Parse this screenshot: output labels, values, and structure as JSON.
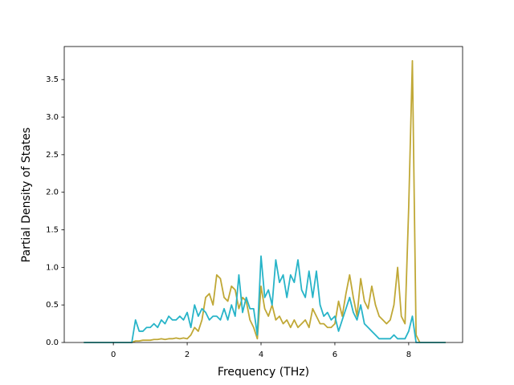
{
  "chart_data": {
    "type": "line",
    "xlabel": "Frequency (THz)",
    "ylabel": "Partial Density of States",
    "x": [
      -0.8,
      -0.7,
      -0.6,
      -0.5,
      -0.4,
      -0.3,
      -0.2,
      -0.1,
      0.0,
      0.1,
      0.2,
      0.3,
      0.4,
      0.5,
      0.6,
      0.7,
      0.8,
      0.9,
      1.0,
      1.1,
      1.2,
      1.3,
      1.4,
      1.5,
      1.6,
      1.7,
      1.8,
      1.9,
      2.0,
      2.1,
      2.2,
      2.3,
      2.4,
      2.5,
      2.6,
      2.7,
      2.8,
      2.9,
      3.0,
      3.1,
      3.2,
      3.3,
      3.4,
      3.5,
      3.6,
      3.7,
      3.8,
      3.9,
      4.0,
      4.1,
      4.2,
      4.3,
      4.4,
      4.5,
      4.6,
      4.7,
      4.8,
      4.9,
      5.0,
      5.1,
      5.2,
      5.3,
      5.4,
      5.5,
      5.6,
      5.7,
      5.8,
      5.9,
      6.0,
      6.1,
      6.2,
      6.3,
      6.4,
      6.5,
      6.6,
      6.7,
      6.8,
      6.9,
      7.0,
      7.1,
      7.2,
      7.3,
      7.4,
      7.5,
      7.6,
      7.7,
      7.8,
      7.9,
      8.0,
      8.1,
      8.2,
      8.3,
      8.4,
      8.5,
      8.6,
      8.7,
      8.8,
      8.9,
      9.0
    ],
    "series": [
      {
        "color": "#c0a836",
        "values": [
          0,
          0,
          0,
          0,
          0,
          0,
          0,
          0,
          0,
          0,
          0,
          0,
          0,
          0,
          0.02,
          0.02,
          0.03,
          0.03,
          0.03,
          0.04,
          0.04,
          0.05,
          0.04,
          0.05,
          0.05,
          0.06,
          0.05,
          0.06,
          0.05,
          0.1,
          0.2,
          0.15,
          0.3,
          0.6,
          0.65,
          0.5,
          0.9,
          0.85,
          0.6,
          0.55,
          0.75,
          0.7,
          0.45,
          0.6,
          0.55,
          0.3,
          0.2,
          0.05,
          0.75,
          0.45,
          0.35,
          0.5,
          0.3,
          0.35,
          0.25,
          0.3,
          0.2,
          0.3,
          0.2,
          0.25,
          0.3,
          0.2,
          0.45,
          0.35,
          0.25,
          0.25,
          0.2,
          0.2,
          0.25,
          0.55,
          0.35,
          0.65,
          0.9,
          0.6,
          0.35,
          0.85,
          0.55,
          0.45,
          0.75,
          0.5,
          0.35,
          0.3,
          0.25,
          0.3,
          0.5,
          1.0,
          0.35,
          0.25,
          1.8,
          3.75,
          0.1,
          0,
          0,
          0,
          0,
          0,
          0,
          0,
          0
        ]
      },
      {
        "color": "#27b4c8",
        "values": [
          0,
          0,
          0,
          0,
          0,
          0,
          0,
          0,
          0,
          0,
          0,
          0,
          0,
          0,
          0.3,
          0.15,
          0.15,
          0.2,
          0.2,
          0.25,
          0.2,
          0.3,
          0.25,
          0.35,
          0.3,
          0.3,
          0.35,
          0.3,
          0.4,
          0.2,
          0.5,
          0.35,
          0.45,
          0.4,
          0.3,
          0.35,
          0.35,
          0.3,
          0.45,
          0.3,
          0.5,
          0.35,
          0.9,
          0.4,
          0.6,
          0.45,
          0.45,
          0.1,
          1.15,
          0.6,
          0.7,
          0.5,
          1.1,
          0.8,
          0.9,
          0.6,
          0.9,
          0.8,
          1.1,
          0.7,
          0.6,
          0.95,
          0.6,
          0.95,
          0.5,
          0.35,
          0.4,
          0.3,
          0.35,
          0.15,
          0.3,
          0.45,
          0.6,
          0.4,
          0.3,
          0.5,
          0.25,
          0.2,
          0.15,
          0.1,
          0.05,
          0.05,
          0.05,
          0.05,
          0.1,
          0.05,
          0.05,
          0.05,
          0.15,
          0.35,
          0,
          0,
          0,
          0,
          0,
          0,
          0,
          0,
          0
        ]
      }
    ],
    "xlim": [
      -1.33,
      9.46
    ],
    "xticks": [
      0,
      2,
      4,
      6,
      8
    ],
    "ylim": [
      0,
      3.94
    ],
    "yticks": [
      {
        "value": 0,
        "label": "0.0"
      },
      {
        "value": 0.5,
        "label": "0.5"
      },
      {
        "value": 1,
        "label": "1.0"
      },
      {
        "value": 1.5,
        "label": "1.5"
      },
      {
        "value": 2,
        "label": "2.0"
      },
      {
        "value": 2.5,
        "label": "2.5"
      },
      {
        "value": 3,
        "label": "3.0"
      },
      {
        "value": 3.5,
        "label": "3.5"
      }
    ]
  }
}
